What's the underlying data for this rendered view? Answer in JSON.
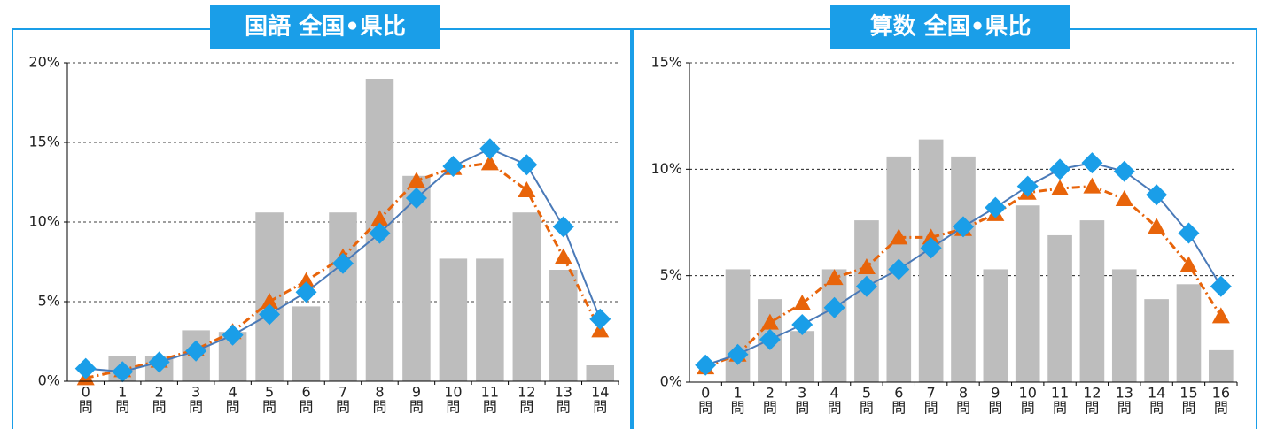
{
  "chart_data": [
    {
      "type": "bar_line",
      "title": "国語 全国•県比",
      "categories": [
        "0",
        "1",
        "2",
        "3",
        "4",
        "5",
        "6",
        "7",
        "8",
        "9",
        "10",
        "11",
        "12",
        "13",
        "14"
      ],
      "x_unit": "問",
      "ylim": [
        0,
        20
      ],
      "yticks": [
        {
          "value": 0,
          "label": "0%"
        },
        {
          "value": 5,
          "label": "5%"
        },
        {
          "value": 10,
          "label": "10%"
        },
        {
          "value": 15,
          "label": "15%"
        },
        {
          "value": 20,
          "label": "20%"
        }
      ],
      "grid": true,
      "series": [
        {
          "kind": "bar",
          "color": "#bdbdbd",
          "values": [
            0,
            1.6,
            1.6,
            3.2,
            3.1,
            10.6,
            4.7,
            10.6,
            19.0,
            12.9,
            7.7,
            7.7,
            10.6,
            7.0,
            1.0
          ]
        },
        {
          "kind": "line",
          "marker": "triangle",
          "color": "#e8640a",
          "values": [
            0.2,
            0.7,
            1.3,
            2.0,
            3.1,
            5.0,
            6.3,
            7.8,
            10.2,
            12.6,
            13.4,
            13.7,
            12.0,
            7.8,
            3.2
          ]
        },
        {
          "kind": "line",
          "marker": "diamond",
          "color": "#4a7ab8",
          "marker_color": "#1a9ee8",
          "values": [
            0.8,
            0.6,
            1.2,
            1.9,
            2.9,
            4.2,
            5.6,
            7.4,
            9.3,
            11.5,
            13.5,
            14.6,
            13.6,
            9.7,
            3.9
          ]
        }
      ]
    },
    {
      "type": "bar_line",
      "title": "算数 全国•県比",
      "categories": [
        "0",
        "1",
        "2",
        "3",
        "4",
        "5",
        "6",
        "7",
        "8",
        "9",
        "10",
        "11",
        "12",
        "13",
        "14",
        "15",
        "16"
      ],
      "x_unit": "問",
      "ylim": [
        0,
        15
      ],
      "yticks": [
        {
          "value": 0,
          "label": "0%"
        },
        {
          "value": 5,
          "label": "5%"
        },
        {
          "value": 10,
          "label": "10%"
        },
        {
          "value": 15,
          "label": "15%"
        }
      ],
      "grid": true,
      "series": [
        {
          "kind": "bar",
          "color": "#bdbdbd",
          "values": [
            0,
            5.3,
            3.9,
            2.4,
            5.3,
            7.6,
            10.6,
            11.4,
            10.6,
            5.3,
            8.3,
            6.9,
            7.6,
            5.3,
            3.9,
            4.6,
            1.5
          ]
        },
        {
          "kind": "line",
          "marker": "triangle",
          "color": "#e8640a",
          "values": [
            0.7,
            1.3,
            2.8,
            3.7,
            4.9,
            5.4,
            6.8,
            6.8,
            7.2,
            7.9,
            8.9,
            9.1,
            9.2,
            8.6,
            7.3,
            5.5,
            3.1
          ]
        },
        {
          "kind": "line",
          "marker": "diamond",
          "color": "#4a7ab8",
          "marker_color": "#1a9ee8",
          "values": [
            0.8,
            1.3,
            2.0,
            2.7,
            3.5,
            4.5,
            5.3,
            6.3,
            7.3,
            8.2,
            9.2,
            10.0,
            10.3,
            9.9,
            8.8,
            7.0,
            4.5
          ]
        }
      ]
    }
  ]
}
